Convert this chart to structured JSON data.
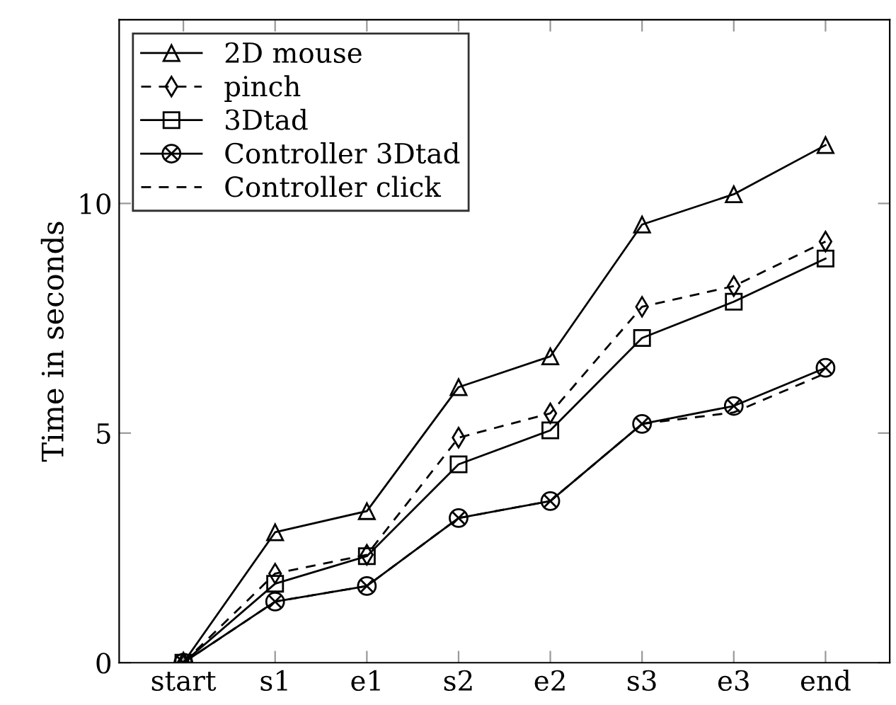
{
  "chart_data": {
    "type": "line",
    "ylabel": "Time in seconds",
    "categories": [
      "start",
      "s1",
      "e1",
      "s2",
      "e2",
      "s3",
      "e3",
      "end"
    ],
    "ylim": [
      0,
      14
    ],
    "yticks": [
      0,
      5,
      10
    ],
    "legend": "top left",
    "grid": false,
    "series": [
      {
        "name": "2D mouse",
        "color": "#000000",
        "marker": "triangle",
        "line_style": "solid",
        "values": [
          0,
          2.84,
          3.3,
          6.0,
          6.67,
          9.54,
          10.2,
          11.27
        ]
      },
      {
        "name": "pinch",
        "color": "#000000",
        "marker": "diamond",
        "line_style": "dashed",
        "values": [
          0,
          1.94,
          2.35,
          4.9,
          5.43,
          7.75,
          8.2,
          9.17
        ]
      },
      {
        "name": "3Dtad",
        "color": "#000000",
        "marker": "square",
        "line_style": "solid",
        "values": [
          0,
          1.72,
          2.32,
          4.32,
          5.06,
          7.07,
          7.86,
          8.8
        ]
      },
      {
        "name": "Controller 3Dtad",
        "color": "#000000",
        "marker": "cross",
        "line_style": "solid",
        "values": [
          0,
          1.33,
          1.67,
          3.15,
          3.52,
          5.2,
          5.59,
          6.42
        ]
      },
      {
        "name": "Controller click",
        "color": "#000000",
        "marker": "none",
        "line_style": "dashed",
        "values": [
          0,
          1.33,
          1.67,
          3.15,
          3.52,
          5.2,
          5.45,
          6.3
        ]
      }
    ]
  }
}
